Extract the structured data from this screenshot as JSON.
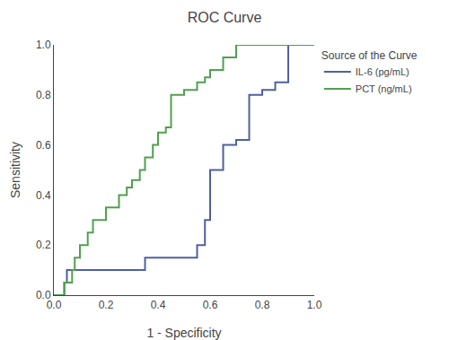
{
  "chart_data": {
    "type": "line",
    "title": "ROC Curve",
    "x_label": "1 - Specificity",
    "y_label": "Sensitivity",
    "legend_title": "Source of the Curve",
    "legend": "right",
    "grid": false,
    "xlim": [
      0.0,
      1.0
    ],
    "ylim": [
      0.0,
      1.0
    ],
    "xticks": [
      {
        "value": 0.0,
        "label": "0.0"
      },
      0.2,
      0.4,
      0.6,
      0.8,
      {
        "value": 1.0,
        "label": "1.0"
      }
    ],
    "yticks": [
      {
        "value": 0.0,
        "label": "0.0"
      },
      0.2,
      0.4,
      0.6,
      0.8,
      {
        "value": 1.0,
        "label": "1.0"
      }
    ],
    "series": [
      {
        "name": "IL-6 (pg/mL)",
        "color": "#5060a0",
        "x": [
          0.0,
          0.04,
          0.04,
          0.05,
          0.05,
          0.35,
          0.35,
          0.55,
          0.55,
          0.58,
          0.58,
          0.6,
          0.6,
          0.65,
          0.65,
          0.7,
          0.7,
          0.75,
          0.75,
          0.8,
          0.8,
          0.85,
          0.85,
          0.9,
          0.9,
          1.0
        ],
        "values": [
          0.0,
          0.0,
          0.05,
          0.05,
          0.1,
          0.1,
          0.15,
          0.15,
          0.2,
          0.2,
          0.3,
          0.3,
          0.5,
          0.5,
          0.6,
          0.6,
          0.62,
          0.62,
          0.8,
          0.8,
          0.82,
          0.82,
          0.85,
          0.85,
          1.0,
          1.0
        ]
      },
      {
        "name": "PCT (ng/mL)",
        "color": "#50a050",
        "x": [
          0.0,
          0.04,
          0.04,
          0.07,
          0.07,
          0.08,
          0.08,
          0.1,
          0.1,
          0.13,
          0.13,
          0.15,
          0.15,
          0.2,
          0.2,
          0.25,
          0.25,
          0.28,
          0.28,
          0.3,
          0.3,
          0.33,
          0.33,
          0.35,
          0.35,
          0.38,
          0.38,
          0.4,
          0.4,
          0.43,
          0.43,
          0.45,
          0.45,
          0.5,
          0.5,
          0.55,
          0.55,
          0.58,
          0.58,
          0.6,
          0.6,
          0.65,
          0.65,
          0.7,
          0.7,
          0.75,
          0.75,
          0.85,
          0.85,
          0.88,
          0.88,
          1.0
        ],
        "values": [
          0.0,
          0.0,
          0.05,
          0.05,
          0.1,
          0.1,
          0.15,
          0.15,
          0.2,
          0.2,
          0.25,
          0.25,
          0.3,
          0.3,
          0.35,
          0.35,
          0.4,
          0.4,
          0.43,
          0.43,
          0.46,
          0.46,
          0.5,
          0.5,
          0.55,
          0.55,
          0.6,
          0.6,
          0.65,
          0.65,
          0.67,
          0.67,
          0.8,
          0.8,
          0.82,
          0.82,
          0.85,
          0.85,
          0.87,
          0.87,
          0.9,
          0.9,
          0.95,
          0.95,
          1.0,
          1.0,
          1.0,
          1.0,
          1.0,
          1.0,
          1.0,
          1.0
        ]
      }
    ]
  }
}
